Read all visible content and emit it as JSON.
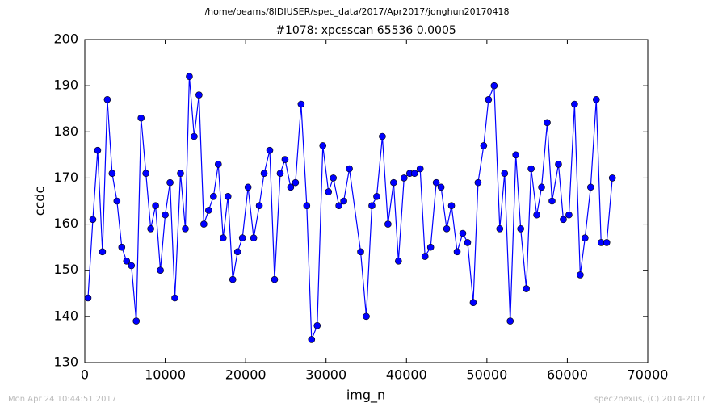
{
  "chart_data": {
    "type": "line",
    "suptitle": "/home/beams/8IDIUSER/spec_data/2017/Apr2017/jonghun20170418",
    "title": "#1078: xpcsscan 65536 0.0005",
    "xlabel": "img_n",
    "ylabel": "ccdc",
    "footer_left": "Mon Apr 24 10:44:51 2017",
    "footer_right": "spec2nexus, (C) 2014-2017",
    "xlim": [
      0,
      70000
    ],
    "ylim": [
      130,
      200
    ],
    "xticks": [
      0,
      10000,
      20000,
      30000,
      40000,
      50000,
      60000,
      70000
    ],
    "yticks": [
      130,
      140,
      150,
      160,
      170,
      180,
      190,
      200
    ],
    "x": [
      400,
      1000,
      1600,
      2200,
      2800,
      3400,
      4000,
      4600,
      5200,
      5800,
      6400,
      7000,
      7600,
      8200,
      8800,
      9400,
      10000,
      10600,
      11200,
      11900,
      12500,
      13000,
      13600,
      14200,
      14800,
      15400,
      16000,
      16600,
      17200,
      17800,
      18400,
      19000,
      19600,
      20300,
      21000,
      21700,
      22300,
      23000,
      23600,
      24300,
      24900,
      25600,
      26200,
      26900,
      27600,
      28200,
      28900,
      29600,
      30300,
      30900,
      31600,
      32200,
      32900,
      34300,
      35000,
      35700,
      36300,
      37000,
      37700,
      38400,
      39000,
      39700,
      40400,
      41000,
      41700,
      42300,
      43000,
      43700,
      44300,
      45000,
      45600,
      46300,
      47000,
      47600,
      48300,
      48900,
      49600,
      50200,
      50900,
      51600,
      52200,
      52900,
      53600,
      54200,
      54900,
      55500,
      56200,
      56800,
      57500,
      58100,
      58900,
      59500,
      60200,
      60900,
      61600,
      62200,
      62900,
      63600,
      64200,
      64900,
      65600
    ],
    "series": [
      {
        "name": "ccdc",
        "color": "#0000ff",
        "marker_edge": "#000000",
        "values": [
          144,
          161,
          176,
          154,
          187,
          171,
          165,
          155,
          152,
          151,
          139,
          183,
          171,
          159,
          164,
          150,
          162,
          169,
          144,
          171,
          159,
          192,
          179,
          188,
          160,
          163,
          166,
          173,
          157,
          166,
          148,
          154,
          157,
          168,
          157,
          164,
          171,
          176,
          148,
          171,
          174,
          168,
          169,
          186,
          164,
          135,
          138,
          177,
          167,
          170,
          164,
          165,
          172,
          154,
          140,
          164,
          166,
          179,
          160,
          169,
          152,
          170,
          171,
          171,
          172,
          153,
          155,
          169,
          168,
          159,
          164,
          154,
          158,
          156,
          143,
          169,
          177,
          187,
          190,
          159,
          171,
          139,
          175,
          159,
          146,
          172,
          162,
          168,
          182,
          165,
          173,
          161,
          162,
          186,
          149,
          157,
          168,
          187,
          156,
          156,
          170
        ]
      }
    ]
  }
}
